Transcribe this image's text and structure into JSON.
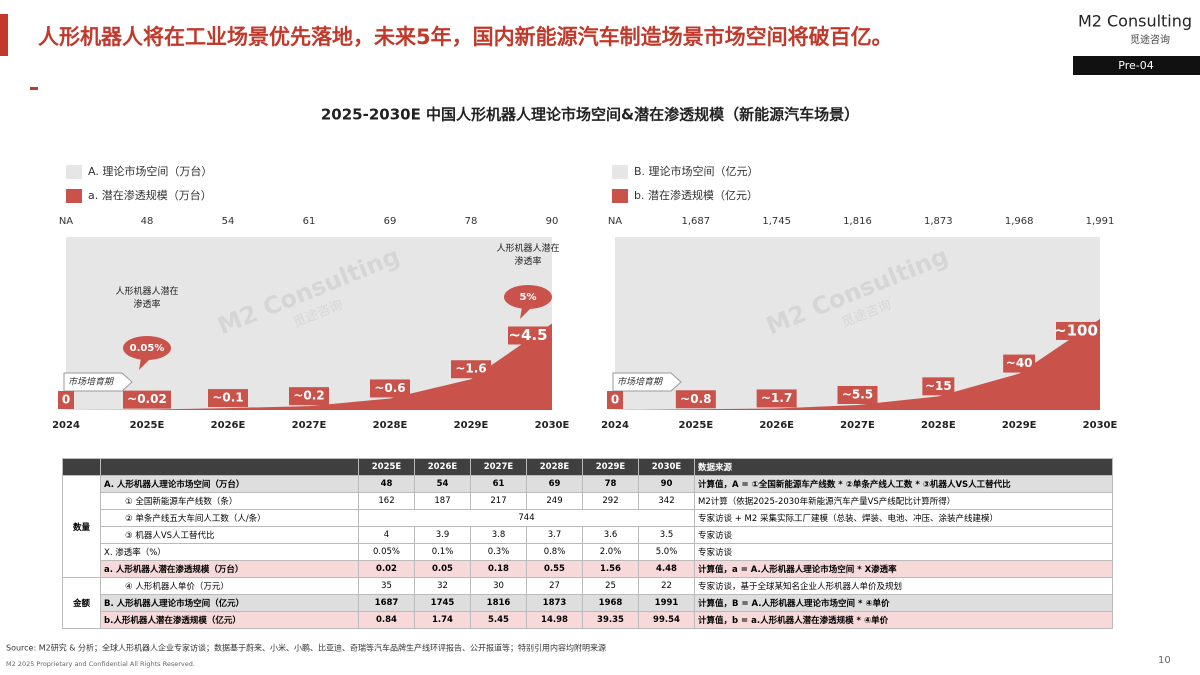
{
  "header": {
    "title": "人形机器人将在工业场景优先落地，未来5年，国内新能源汽车制造场景市场空间将破百亿。",
    "logo": "M2 Consulting",
    "logo_sub": "觅途咨询",
    "page_code": "Pre-04"
  },
  "section_title": "2025-2030E 中国人形机器人理论市场空间&潜在渗透规模（新能源汽车场景）",
  "watermark": "M2 Consulting",
  "watermark_sub": "觅途咨询",
  "chart_data": [
    {
      "type": "area",
      "categories": [
        "2024",
        "2025E",
        "2026E",
        "2027E",
        "2028E",
        "2029E",
        "2030E"
      ],
      "series": [
        {
          "name": "A. 理论市场空间（万台）",
          "color": "#e6e6e6",
          "values": [
            null,
            48,
            54,
            61,
            69,
            78,
            90
          ],
          "value_labels": [
            "NA",
            "48",
            "54",
            "61",
            "69",
            "78",
            "90"
          ]
        },
        {
          "name": "a. 潜在渗透规模（万台）",
          "color": "#c9534b",
          "values": [
            0,
            0.02,
            0.1,
            0.2,
            0.6,
            1.6,
            4.5
          ],
          "value_labels": [
            "0",
            "~0.02",
            "~0.1",
            "~0.2",
            "~0.6",
            "~1.6",
            "~4.5"
          ]
        }
      ],
      "ylim": [
        0,
        9
      ],
      "phase_label": "市场培育期",
      "callout_title": "人形机器人潜在渗透率",
      "callouts": [
        {
          "value": 0.05,
          "label": "0.05%"
        },
        {
          "value": 5,
          "label": "5%"
        }
      ]
    },
    {
      "type": "area",
      "categories": [
        "2024",
        "2025E",
        "2026E",
        "2027E",
        "2028E",
        "2029E",
        "2030E"
      ],
      "series": [
        {
          "name": "B. 理论市场空间（亿元）",
          "color": "#e6e6e6",
          "values": [
            null,
            1687,
            1745,
            1816,
            1873,
            1968,
            1991
          ],
          "value_labels": [
            "NA",
            "1,687",
            "1,745",
            "1,816",
            "1,873",
            "1,968",
            "1,991"
          ]
        },
        {
          "name": "b. 潜在渗透规模（亿元）",
          "color": "#c9534b",
          "values": [
            0,
            0.8,
            1.7,
            5.5,
            15,
            40,
            100
          ],
          "value_labels": [
            "0",
            "~0.8",
            "~1.7",
            "~5.5",
            "~15",
            "~40",
            "~100"
          ]
        }
      ],
      "ylim": [
        0,
        190
      ],
      "phase_label": "市场培育期"
    }
  ],
  "table": {
    "columns": [
      "2025E",
      "2026E",
      "2027E",
      "2028E",
      "2029E",
      "2030E"
    ],
    "source_header": "数据来源",
    "groups": [
      {
        "name": "数量",
        "rows": [
          {
            "label": "A. 人形机器人理论市场空间（万台）",
            "cells": [
              "48",
              "54",
              "61",
              "69",
              "78",
              "90"
            ],
            "source": "计算值，A = ①全国新能源车产线数 * ②单条产线人工数 * ③机器人VS人工替代比"
          },
          {
            "label": "① 全国新能源车产线数（条）",
            "cells": [
              "162",
              "187",
              "217",
              "249",
              "292",
              "342"
            ],
            "source": "M2计算（依据2025-2030年新能源汽车产量VS产线配比计算所得）"
          },
          {
            "label": "② 单条产线五大车间人工数（人/条）",
            "cells": [
              "744"
            ],
            "source": "专家访谈 + M2 采集实际工厂建模（总装、焊装、电池、冲压、涂装产线建模）"
          },
          {
            "label": "③ 机器人VS人工替代比",
            "cells": [
              "4",
              "3.9",
              "3.8",
              "3.7",
              "3.6",
              "3.5"
            ],
            "source": "专家访谈"
          },
          {
            "label": "X. 渗透率（%）",
            "cells": [
              "0.05%",
              "0.1%",
              "0.3%",
              "0.8%",
              "2.0%",
              "5.0%"
            ],
            "source": "专家访谈"
          },
          {
            "label": "a. 人形机器人潜在渗透规模（万台）",
            "cells": [
              "0.02",
              "0.05",
              "0.18",
              "0.55",
              "1.56",
              "4.48"
            ],
            "source": "计算值，a = A.人形机器人理论市场空间 * X渗透率"
          }
        ]
      },
      {
        "name": "金额",
        "rows": [
          {
            "label": "④ 人形机器人单价（万元）",
            "cells": [
              "35",
              "32",
              "30",
              "27",
              "25",
              "22"
            ],
            "source": "专家访谈，基于全球某知名企业人形机器人单价及规划"
          },
          {
            "label": "B. 人形机器人理论市场空间（亿元）",
            "cells": [
              "1687",
              "1745",
              "1816",
              "1873",
              "1968",
              "1991"
            ],
            "source": "计算值，B = A.人形机器人理论市场空间 * ④单价"
          },
          {
            "label": "b.人形机器人潜在渗透规模（亿元）",
            "cells": [
              "0.84",
              "1.74",
              "5.45",
              "14.98",
              "39.35",
              "99.54"
            ],
            "source": "计算值，b = a.人形机器人潜在渗透规模 * ④单价"
          }
        ]
      }
    ]
  },
  "footer": {
    "source": "Source: M2研究 & 分析；全球人形机器人企业专家访谈；数据基于蔚来、小米、小鹏、比亚迪、奇瑞等汽车品牌生产线环评报告、公开报道等；特别引用内容均附明来源",
    "copyright": "M2 2025 Proprietary and Confidential All Rights Reserved.",
    "page": "10"
  }
}
